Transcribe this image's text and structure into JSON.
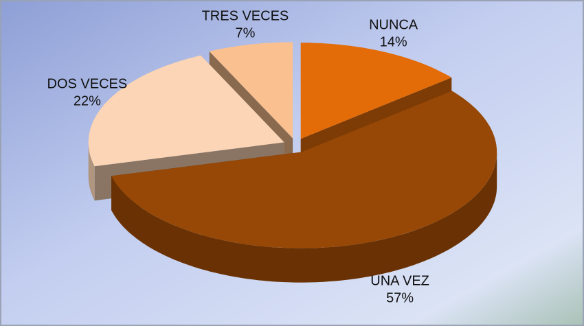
{
  "chart_data": {
    "type": "pie3d",
    "categories": [
      "NUNCA",
      "UNA VEZ",
      "DOS VECES",
      "TRES VECES"
    ],
    "values": [
      14,
      57,
      22,
      7
    ],
    "value_labels": [
      "14%",
      "57%",
      "22%",
      "7%"
    ],
    "colors": [
      "#e36c09",
      "#974806",
      "#fbd5b5",
      "#fac090"
    ]
  }
}
